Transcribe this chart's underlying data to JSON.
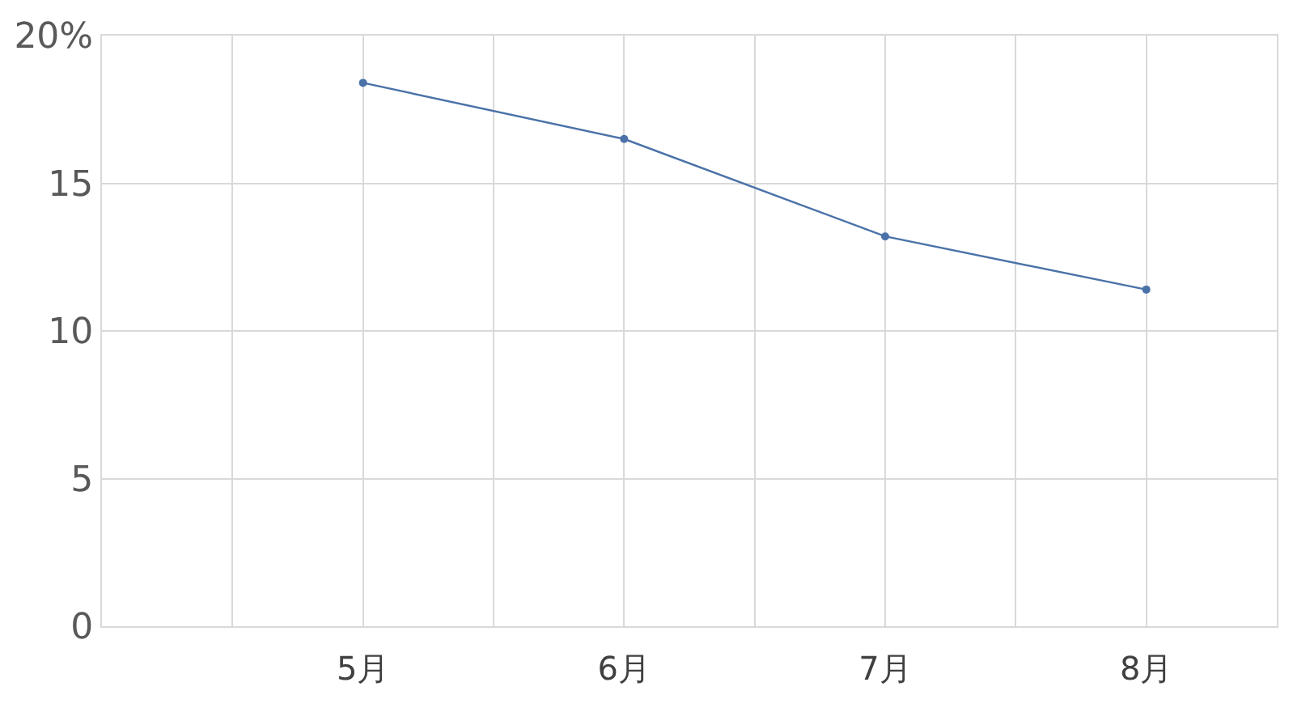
{
  "chart_data": {
    "type": "line",
    "categories": [
      null,
      "5月",
      "6月",
      "7月",
      "8月"
    ],
    "series": [
      {
        "color": "#4a72a8",
        "values": [
          null,
          18.4,
          16.5,
          13.2,
          11.4
        ]
      }
    ],
    "ylim": [
      0,
      20
    ],
    "yticks": [
      0,
      5,
      10,
      15,
      {
        "value": 20,
        "label": "20%"
      }
    ],
    "grid": true,
    "marker": "circle",
    "line_style": "solid"
  }
}
